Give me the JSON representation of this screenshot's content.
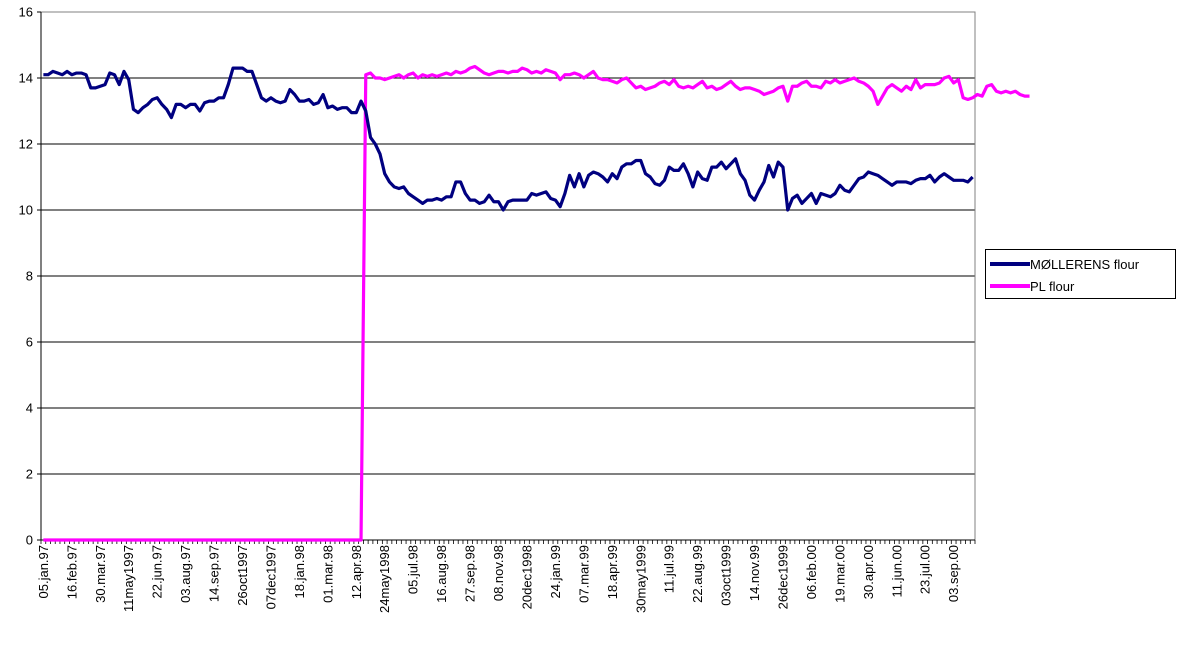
{
  "chart_data": {
    "type": "line",
    "title": "",
    "xlabel": "",
    "ylabel": "",
    "ylim": [
      0,
      16
    ],
    "yticks": [
      "0",
      "2",
      "4",
      "6",
      "8",
      "10",
      "12",
      "14",
      "16"
    ],
    "grid": "horizontal",
    "legend_position": "right",
    "x_tick_labels": [
      "05.jan.97",
      "16.feb.97",
      "30.mar.97",
      "11may1997",
      "22.jun.97",
      "03.aug.97",
      "14.sep.97",
      "26oct1997",
      "07dec1997",
      "18.jan.98",
      "01.mar.98",
      "12.apr.98",
      "24may1998",
      "05.jul.98",
      "16.aug.98",
      "27.sep.98",
      "08.nov.98",
      "20dec1998",
      "24.jan.99",
      "07.mar.99",
      "18.apr.99",
      "30may1999",
      "11.jul.99",
      "22.aug.99",
      "03oct1999",
      "14.nov.99",
      "26dec1999",
      "06.feb.00",
      "19.mar.00",
      "30.apr.00",
      "11.jun.00",
      "23.jul.00",
      "03.sep.00"
    ],
    "series": [
      {
        "name": "MØLLERENS flour",
        "color": "#000080",
        "values": [
          14.1,
          14.1,
          14.2,
          14.15,
          14.1,
          14.2,
          14.1,
          14.15,
          14.15,
          14.1,
          13.7,
          13.7,
          13.75,
          13.8,
          14.15,
          14.1,
          13.8,
          14.2,
          13.95,
          13.05,
          12.95,
          13.1,
          13.2,
          13.35,
          13.4,
          13.2,
          13.05,
          12.8,
          13.2,
          13.2,
          13.1,
          13.2,
          13.2,
          13.0,
          13.25,
          13.3,
          13.3,
          13.4,
          13.4,
          13.8,
          14.3,
          14.3,
          14.3,
          14.2,
          14.2,
          13.8,
          13.4,
          13.3,
          13.4,
          13.3,
          13.25,
          13.3,
          13.65,
          13.5,
          13.3,
          13.3,
          13.35,
          13.2,
          13.25,
          13.5,
          13.1,
          13.15,
          13.05,
          13.1,
          13.1,
          12.95,
          12.95,
          13.3,
          13.0,
          12.2,
          12.0,
          11.7,
          11.1,
          10.85,
          10.7,
          10.65,
          10.7,
          10.5,
          10.4,
          10.3,
          10.2,
          10.3,
          10.3,
          10.35,
          10.3,
          10.4,
          10.4,
          10.85,
          10.85,
          10.5,
          10.3,
          10.3,
          10.2,
          10.25,
          10.45,
          10.25,
          10.25,
          10.0,
          10.25,
          10.3,
          10.3,
          10.3,
          10.3,
          10.5,
          10.45,
          10.5,
          10.55,
          10.35,
          10.3,
          10.1,
          10.5,
          11.05,
          10.7,
          11.1,
          10.7,
          11.05,
          11.15,
          11.1,
          11.0,
          10.85,
          11.1,
          10.95,
          11.3,
          11.4,
          11.4,
          11.5,
          11.5,
          11.1,
          11.0,
          10.8,
          10.75,
          10.9,
          11.3,
          11.2,
          11.2,
          11.4,
          11.1,
          10.7,
          11.15,
          10.95,
          10.9,
          11.3,
          11.3,
          11.45,
          11.25,
          11.4,
          11.55,
          11.1,
          10.9,
          10.45,
          10.3,
          10.6,
          10.85,
          11.35,
          11.0,
          11.45,
          11.3,
          10.0,
          10.35,
          10.45,
          10.2,
          10.35,
          10.5,
          10.2,
          10.5,
          10.45,
          10.4,
          10.5,
          10.75,
          10.6,
          10.55,
          10.75,
          10.95,
          11.0,
          11.15,
          11.1,
          11.05,
          10.95,
          10.85,
          10.75,
          10.85,
          10.85,
          10.85,
          10.8,
          10.9,
          10.95,
          10.95,
          11.05,
          10.85,
          11.0,
          11.1,
          11.0,
          10.9,
          10.9,
          10.9,
          10.85,
          11.0
        ]
      },
      {
        "name": "PL flour",
        "color": "#ff00ff",
        "values": [
          0,
          0,
          0,
          0,
          0,
          0,
          0,
          0,
          0,
          0,
          0,
          0,
          0,
          0,
          0,
          0,
          0,
          0,
          0,
          0,
          0,
          0,
          0,
          0,
          0,
          0,
          0,
          0,
          0,
          0,
          0,
          0,
          0,
          0,
          0,
          0,
          0,
          0,
          0,
          0,
          0,
          0,
          0,
          0,
          0,
          0,
          0,
          0,
          0,
          0,
          0,
          0,
          0,
          0,
          0,
          0,
          0,
          0,
          0,
          0,
          0,
          0,
          0,
          0,
          0,
          0,
          0,
          0,
          14.1,
          14.15,
          14.0,
          14.0,
          13.95,
          14.0,
          14.05,
          14.1,
          14.0,
          14.1,
          14.15,
          14.0,
          14.1,
          14.05,
          14.1,
          14.05,
          14.1,
          14.15,
          14.1,
          14.2,
          14.15,
          14.2,
          14.3,
          14.35,
          14.25,
          14.15,
          14.1,
          14.15,
          14.2,
          14.2,
          14.15,
          14.2,
          14.2,
          14.3,
          14.25,
          14.15,
          14.2,
          14.15,
          14.25,
          14.2,
          14.15,
          13.95,
          14.1,
          14.1,
          14.15,
          14.1,
          14.0,
          14.1,
          14.2,
          14.0,
          13.95,
          13.95,
          13.9,
          13.85,
          13.95,
          14.0,
          13.85,
          13.7,
          13.75,
          13.65,
          13.7,
          13.75,
          13.85,
          13.9,
          13.8,
          13.95,
          13.75,
          13.7,
          13.75,
          13.7,
          13.8,
          13.9,
          13.7,
          13.75,
          13.65,
          13.7,
          13.8,
          13.9,
          13.75,
          13.65,
          13.7,
          13.7,
          13.65,
          13.6,
          13.5,
          13.55,
          13.6,
          13.7,
          13.75,
          13.3,
          13.75,
          13.75,
          13.85,
          13.9,
          13.75,
          13.75,
          13.7,
          13.9,
          13.85,
          13.95,
          13.85,
          13.9,
          13.95,
          14.0,
          13.9,
          13.85,
          13.75,
          13.6,
          13.2,
          13.45,
          13.7,
          13.8,
          13.7,
          13.6,
          13.75,
          13.65,
          13.95,
          13.7,
          13.8,
          13.8,
          13.8,
          13.85,
          14.0,
          14.05,
          13.85,
          13.95,
          13.4,
          13.35,
          13.4,
          13.5,
          13.45,
          13.75,
          13.8,
          13.6,
          13.55,
          13.6,
          13.55,
          13.6,
          13.5,
          13.45,
          13.45
        ]
      }
    ]
  }
}
